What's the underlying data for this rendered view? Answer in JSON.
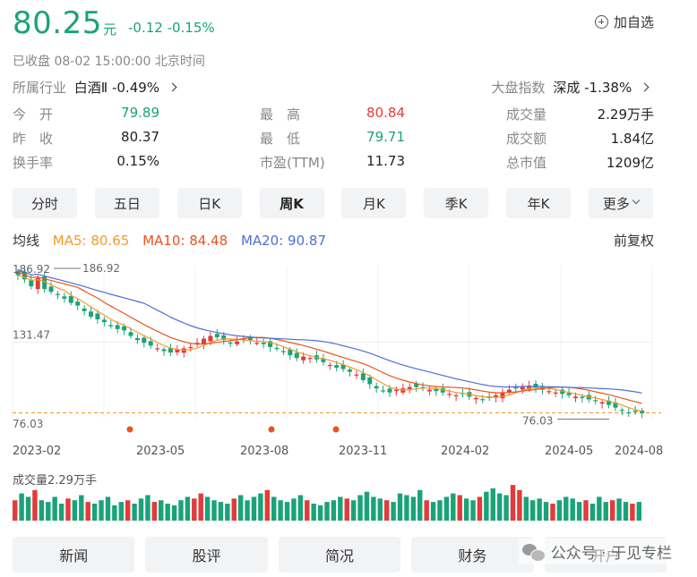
{
  "header": {
    "price": "80.25",
    "unit": "元",
    "change": "-0.12 -0.15%",
    "watch_label": "加自选",
    "status": "已收盘  08-02 15:00:00  北京时间",
    "industry_label": "所属行业",
    "industry_name": "白酒Ⅱ",
    "industry_change": "-0.49%",
    "index_label": "大盘指数",
    "index_name": "深成",
    "index_change": "-1.38%"
  },
  "stats": [
    {
      "label": "今　开",
      "value": "79.89",
      "color": "green"
    },
    {
      "label": "最　高",
      "value": "80.84",
      "color": "red"
    },
    {
      "label": "成交量",
      "value": "2.29万手",
      "color": "dark"
    },
    {
      "label": "昨　收",
      "value": "80.37",
      "color": "dark"
    },
    {
      "label": "最　低",
      "value": "79.71",
      "color": "green"
    },
    {
      "label": "成交额",
      "value": "1.84亿",
      "color": "dark"
    },
    {
      "label": "换手率",
      "value": "0.15%",
      "color": "dark"
    },
    {
      "label": "市盈(TTM)",
      "value": "11.73",
      "color": "dark"
    },
    {
      "label": "总市值",
      "value": "1209亿",
      "color": "dark"
    }
  ],
  "tabs": [
    "分时",
    "五日",
    "日K",
    "周K",
    "月K",
    "季K",
    "年K",
    "更多"
  ],
  "active_tab": "周K",
  "ma": {
    "label": "均线",
    "ma5": "MA5: 80.65",
    "ma10": "MA10: 84.48",
    "ma20": "MA20: 90.87",
    "adjust": "前复权",
    "ma5_color": "#f29a2e",
    "ma10_color": "#e8541c",
    "ma20_color": "#4e6fd6"
  },
  "chart_data": {
    "type": "candlestick",
    "y_labels": [
      "186.92",
      "131.47",
      "76.03"
    ],
    "max_marker": "186.92",
    "min_marker": "76.03",
    "current_price_line": 80.25,
    "x_labels": [
      "2023-02",
      "2023-05",
      "2023-08",
      "2023-11",
      "2024-02",
      "2024-05",
      "2024-08"
    ],
    "up_color": "#e23b3b",
    "down_color": "#1aa378",
    "weekly_close": [
      180,
      177,
      172,
      178,
      170,
      168,
      166,
      163,
      160,
      158,
      154,
      150,
      148,
      146,
      143,
      141,
      140,
      136,
      133,
      131,
      129,
      127,
      125,
      124,
      126,
      127,
      128,
      131,
      134,
      136,
      135,
      133,
      131,
      132,
      134,
      133,
      131,
      130,
      128,
      127,
      125,
      122,
      120,
      121,
      120,
      119,
      117,
      115,
      113,
      112,
      110,
      108,
      104,
      101,
      98,
      96,
      95,
      97,
      98,
      99,
      99,
      98,
      97,
      96,
      95,
      94,
      93,
      94,
      92,
      91,
      90,
      91,
      93,
      95,
      97,
      98,
      99,
      100,
      98,
      97,
      96,
      95,
      94,
      93,
      92,
      91,
      90,
      89,
      88,
      86,
      84,
      82,
      80,
      81,
      80
    ]
  },
  "volume": {
    "label": "成交量2.29万手",
    "bars": [
      0.6,
      0.8,
      0.7,
      0.9,
      0.6,
      0.55,
      0.7,
      0.5,
      0.65,
      0.6,
      0.75,
      0.55,
      0.5,
      0.6,
      0.7,
      0.45,
      0.55,
      0.6,
      0.5,
      0.65,
      0.75,
      0.55,
      0.6,
      0.5,
      0.45,
      0.6,
      0.7,
      0.65,
      0.8,
      0.7,
      0.6,
      0.55,
      0.5,
      0.65,
      0.75,
      0.6,
      0.7,
      0.8,
      0.9,
      0.7,
      0.6,
      0.55,
      0.65,
      0.75,
      0.6,
      0.5,
      0.45,
      0.55,
      0.6,
      0.7,
      0.65,
      0.6,
      0.75,
      0.85,
      0.7,
      0.65,
      0.6,
      0.55,
      0.8,
      0.75,
      0.7,
      0.9,
      0.6,
      0.55,
      0.6,
      0.7,
      0.8,
      0.75,
      0.65,
      0.6,
      0.7,
      0.85,
      0.95,
      0.8,
      0.75,
      1.05,
      0.9,
      0.7,
      0.6,
      0.65,
      0.55,
      0.5,
      0.6,
      0.7,
      0.65,
      0.55,
      0.6,
      0.5,
      0.7,
      0.55,
      0.6,
      0.65,
      0.55,
      0.5,
      0.55
    ],
    "red_idx": [
      0,
      3,
      8,
      11,
      17,
      21,
      27,
      28,
      33,
      38,
      44,
      50,
      56,
      62,
      67,
      70,
      75,
      76,
      81,
      86,
      90,
      93
    ]
  },
  "bottom_tabs": [
    "新闻",
    "股评",
    "简况",
    "财务",
    "开户"
  ],
  "watermark": "公众号 · 于见专栏"
}
